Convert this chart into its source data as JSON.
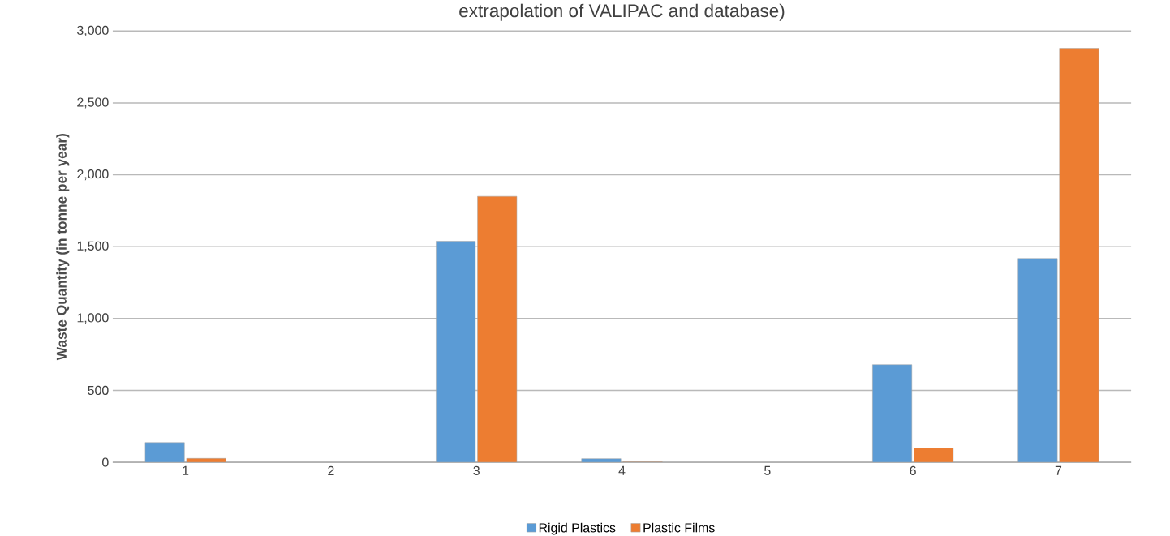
{
  "chart_data": {
    "type": "bar",
    "title": "extrapolation of VALIPAC and database)",
    "ylabel": "Waste Quantity (in tonne per year)",
    "categories": [
      "1",
      "2",
      "3",
      "4",
      "5",
      "6",
      "7"
    ],
    "series": [
      {
        "name": "Rigid Plastics",
        "color": "#5b9bd5",
        "values": [
          137,
          null,
          1538,
          25,
          null,
          679,
          1418
        ]
      },
      {
        "name": "Plastic Films",
        "color": "#ed7d31",
        "values": [
          27,
          null,
          1850,
          3,
          null,
          99,
          2880
        ]
      }
    ],
    "ylim": [
      0,
      3000
    ],
    "yticks": [
      {
        "value": 0,
        "label": "0"
      },
      {
        "value": 500,
        "label": "500"
      },
      {
        "value": 1000,
        "label": "1,000"
      },
      {
        "value": 1500,
        "label": "1,500"
      },
      {
        "value": 2000,
        "label": "2,000"
      },
      {
        "value": 2500,
        "label": "2,500"
      },
      {
        "value": 3000,
        "label": "3,000"
      }
    ],
    "grid": "y",
    "legend": "bottom"
  }
}
